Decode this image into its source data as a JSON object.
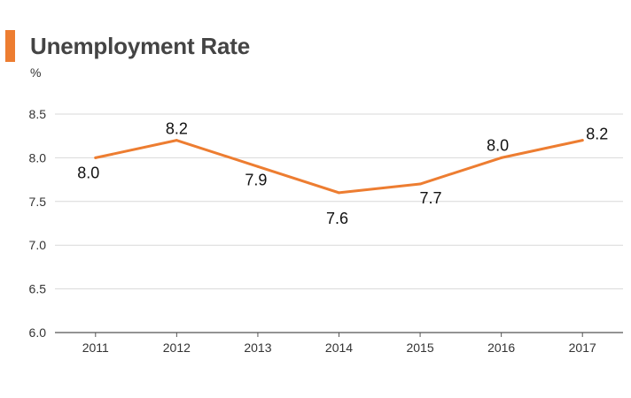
{
  "colors": {
    "accent": "#ED7D31",
    "line": "#ED7D31",
    "grid": "#D9D9D9",
    "axis": "#555555"
  },
  "chart_data": {
    "type": "line",
    "title": "Unemployment Rate",
    "ylabel": "%",
    "xlabel": "",
    "categories": [
      "2011",
      "2012",
      "2013",
      "2014",
      "2015",
      "2016",
      "2017"
    ],
    "series": [
      {
        "values": [
          8.0,
          8.2,
          7.9,
          7.6,
          7.7,
          8.0,
          8.2
        ]
      }
    ],
    "data_labels": [
      "8.0",
      "8.2",
      "7.9",
      "7.6",
      "7.7",
      "8.0",
      "8.2"
    ],
    "yticks": [
      "6.0",
      "6.5",
      "7.0",
      "7.5",
      "8.0",
      "8.5"
    ],
    "ylim": [
      6.0,
      8.5
    ],
    "grid": true,
    "legend": "none"
  }
}
